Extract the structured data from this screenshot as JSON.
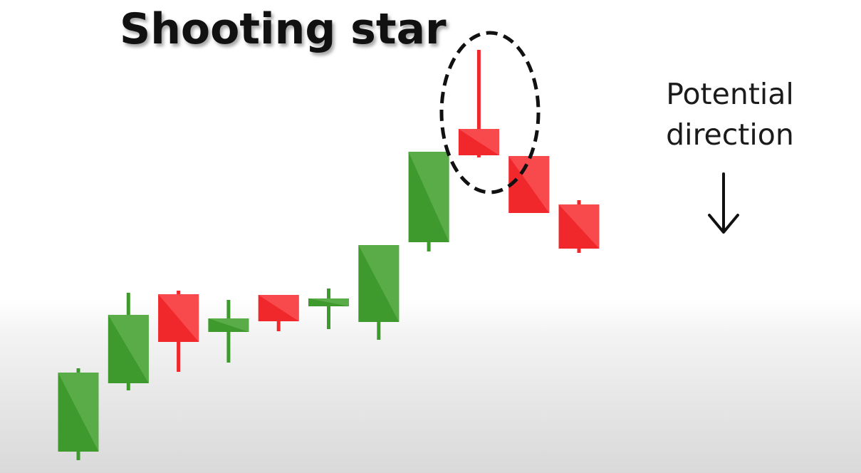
{
  "title": "Shooting star",
  "annotation": {
    "lines": [
      "Potential",
      "direction"
    ],
    "arrow_icon": "down-arrow-icon"
  },
  "colors": {
    "bullish": "#3f9a2e",
    "bullish_light": "#59ac48",
    "bearish": "#f0282c",
    "bearish_light": "#f84a4c",
    "highlight_outline": "#111111"
  },
  "chart_data": {
    "type": "candlestick",
    "title": "Shooting star",
    "price_axis": "none shown",
    "highlighted_candle_index": 8,
    "candles": [
      {
        "index": 0,
        "direction": "bullish",
        "open": 30,
        "close": 141,
        "high": 147,
        "low": 18
      },
      {
        "index": 1,
        "direction": "bullish",
        "open": 126,
        "close": 222,
        "high": 253,
        "low": 116
      },
      {
        "index": 2,
        "direction": "bearish",
        "open": 251,
        "close": 184,
        "high": 256,
        "low": 142
      },
      {
        "index": 3,
        "direction": "bullish",
        "open": 198,
        "close": 217,
        "high": 243,
        "low": 155
      },
      {
        "index": 4,
        "direction": "bearish",
        "open": 250,
        "close": 213,
        "high": 250,
        "low": 199
      },
      {
        "index": 5,
        "direction": "bullish",
        "open": 234,
        "close": 245,
        "high": 259,
        "low": 202
      },
      {
        "index": 6,
        "direction": "bullish",
        "open": 212,
        "close": 320,
        "high": 320,
        "low": 187
      },
      {
        "index": 7,
        "direction": "bullish",
        "open": 324,
        "close": 451,
        "high": 451,
        "low": 311
      },
      {
        "index": 8,
        "direction": "bearish",
        "open": 483,
        "close": 446,
        "high": 594,
        "low": 443
      },
      {
        "index": 9,
        "direction": "bearish",
        "open": 445,
        "close": 365,
        "high": 445,
        "low": 365
      },
      {
        "index": 10,
        "direction": "bearish",
        "open": 377,
        "close": 315,
        "high": 383,
        "low": 309
      }
    ]
  }
}
